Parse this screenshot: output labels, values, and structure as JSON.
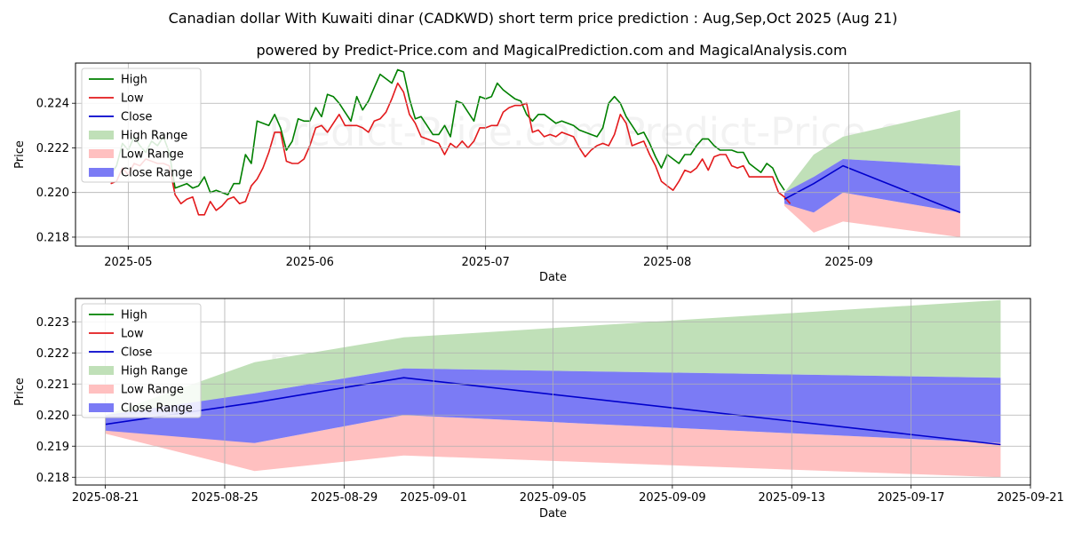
{
  "title": "Canadian dollar With Kuwaiti dinar (CADKWD) short term price prediction : Aug,Sep,Oct 2025 (Aug 21)",
  "subtitle": "powered by Predict-Price.com and MagicalPrediction.com and MagicalAnalysis.com",
  "watermark": "Predict-Price.com",
  "colors": {
    "high": "#008000",
    "low": "#e31a1c",
    "close": "#0000cc",
    "high_range": "#c0e0b8",
    "low_range": "#ffc0c0",
    "close_range": "#7b7bf5"
  },
  "chart_data": [
    {
      "type": "line",
      "xlabel": "Date",
      "ylabel": "Price",
      "x_ticks": [
        "2025-05",
        "2025-06",
        "2025-07",
        "2025-08",
        "2025-09"
      ],
      "x_tick_dates": [
        "2025-05-01",
        "2025-06-01",
        "2025-07-01",
        "2025-08-01",
        "2025-09-01"
      ],
      "xlim": [
        "2025-04-22",
        "2025-10-02"
      ],
      "ylim": [
        0.2176,
        0.2258
      ],
      "y_ticks": [
        0.218,
        0.22,
        0.222,
        0.224
      ],
      "y_tick_labels": [
        "0.218",
        "0.220",
        "0.222",
        "0.224"
      ],
      "grid": true,
      "legend": {
        "placement": "top-left",
        "entries": [
          "High",
          "Low",
          "Close",
          "High Range",
          "Low Range",
          "Close Range"
        ]
      },
      "history_start": "2025-04-28",
      "history_high": [
        0.2208,
        0.2212,
        0.2222,
        0.2219,
        0.2225,
        0.2221,
        0.2218,
        0.2223,
        0.2221,
        0.2225,
        0.2218,
        0.2202,
        0.2203,
        0.2204,
        0.2202,
        0.2203,
        0.2207,
        0.22,
        0.2201,
        0.22,
        0.2199,
        0.2204,
        0.2204,
        0.2217,
        0.2213,
        0.2232,
        0.2231,
        0.223,
        0.2235,
        0.2229,
        0.2219,
        0.2223,
        0.2233,
        0.2232,
        0.2232,
        0.2238,
        0.2234,
        0.2244,
        0.2243,
        0.224,
        0.2236,
        0.2232,
        0.2243,
        0.2237,
        0.2241,
        0.2247,
        0.2253,
        0.2251,
        0.2249,
        0.2255,
        0.2254,
        0.2242,
        0.2233,
        0.2234,
        0.223,
        0.2226,
        0.2226,
        0.223,
        0.2225,
        0.2241,
        0.224,
        0.2236,
        0.2232,
        0.2243,
        0.2242,
        0.2243,
        0.2249,
        0.2246,
        0.2244,
        0.2242,
        0.2241,
        0.2235,
        0.2232,
        0.2235,
        0.2235,
        0.2233,
        0.2231,
        0.2232,
        0.2231,
        0.223,
        0.2228,
        0.2227,
        0.2226,
        0.2225,
        0.2229,
        0.224,
        0.2243,
        0.224,
        0.2234,
        0.223,
        0.2226,
        0.2227,
        0.2222,
        0.2216,
        0.2211,
        0.2217,
        0.2215,
        0.2213,
        0.2217,
        0.2217,
        0.2221,
        0.2224,
        0.2224,
        0.2221,
        0.2219,
        0.2219,
        0.2219,
        0.2218,
        0.2218,
        0.2213,
        0.2211,
        0.2209,
        0.2213,
        0.2211,
        0.2205,
        0.2201
      ],
      "history_low": [
        0.2204,
        0.2205,
        0.2211,
        0.2208,
        0.2213,
        0.2212,
        0.2215,
        0.2214,
        0.2213,
        0.2213,
        0.2212,
        0.2199,
        0.2195,
        0.2197,
        0.2198,
        0.219,
        0.219,
        0.2196,
        0.2192,
        0.2194,
        0.2197,
        0.2198,
        0.2195,
        0.2196,
        0.2203,
        0.2206,
        0.2211,
        0.2218,
        0.2227,
        0.2227,
        0.2214,
        0.2213,
        0.2213,
        0.2215,
        0.2221,
        0.2229,
        0.223,
        0.2227,
        0.2231,
        0.2235,
        0.223,
        0.223,
        0.223,
        0.2229,
        0.2227,
        0.2232,
        0.2233,
        0.2236,
        0.2242,
        0.2249,
        0.2245,
        0.2235,
        0.2231,
        0.2225,
        0.2224,
        0.2223,
        0.2222,
        0.2217,
        0.2222,
        0.222,
        0.2223,
        0.222,
        0.2223,
        0.2229,
        0.2229,
        0.223,
        0.223,
        0.2236,
        0.2238,
        0.2239,
        0.2239,
        0.224,
        0.2227,
        0.2228,
        0.2225,
        0.2226,
        0.2225,
        0.2227,
        0.2226,
        0.2225,
        0.222,
        0.2216,
        0.2219,
        0.2221,
        0.2222,
        0.2221,
        0.2226,
        0.2235,
        0.2231,
        0.2221,
        0.2222,
        0.2223,
        0.2217,
        0.2212,
        0.2205,
        0.2203,
        0.2201,
        0.2205,
        0.221,
        0.2209,
        0.2211,
        0.2215,
        0.221,
        0.2216,
        0.2217,
        0.2217,
        0.2212,
        0.2211,
        0.2212,
        0.2207,
        0.2207,
        0.2207,
        0.2207,
        0.2207,
        0.22,
        0.2198,
        0.2195
      ],
      "forecast_dates": [
        "2025-08-21",
        "2025-08-26",
        "2025-08-31",
        "2025-09-20"
      ],
      "high_range": {
        "upper": [
          0.22,
          0.2217,
          0.2225,
          0.2237
        ],
        "lower": [
          0.2198,
          0.2207,
          0.2215,
          0.2212
        ]
      },
      "low_range": {
        "upper": [
          0.2197,
          0.2191,
          0.22,
          0.2191
        ],
        "lower": [
          0.2194,
          0.2182,
          0.2187,
          0.218
        ]
      },
      "close_range": {
        "upper": [
          0.22,
          0.2207,
          0.2215,
          0.2212
        ],
        "lower": [
          0.2195,
          0.2191,
          0.22,
          0.2191
        ]
      },
      "close": [
        0.2197,
        0.2204,
        0.2212,
        0.2191
      ]
    },
    {
      "type": "area",
      "xlabel": "Date",
      "ylabel": "Price",
      "x_ticks": [
        "2025-08-21",
        "2025-08-25",
        "2025-08-29",
        "2025-09-01",
        "2025-09-05",
        "2025-09-09",
        "2025-09-13",
        "2025-09-17",
        "2025-09-21"
      ],
      "xlim": [
        "2025-08-20",
        "2025-09-21"
      ],
      "ylim": [
        0.21775,
        0.22375
      ],
      "y_ticks": [
        0.218,
        0.219,
        0.22,
        0.221,
        0.222,
        0.223
      ],
      "y_tick_labels": [
        "0.218",
        "0.219",
        "0.220",
        "0.221",
        "0.222",
        "0.223"
      ],
      "grid": true,
      "legend": {
        "placement": "top-left",
        "entries": [
          "High",
          "Low",
          "Close",
          "High Range",
          "Low Range",
          "Close Range"
        ]
      },
      "forecast_dates": [
        "2025-08-21",
        "2025-08-26",
        "2025-08-31",
        "2025-09-20"
      ],
      "high_range": {
        "upper": [
          0.22,
          0.2217,
          0.2225,
          0.2237
        ],
        "lower": [
          0.2198,
          0.2207,
          0.2215,
          0.2212
        ]
      },
      "low_range": {
        "upper": [
          0.2197,
          0.2191,
          0.22,
          0.2191
        ],
        "lower": [
          0.2194,
          0.2182,
          0.2187,
          0.218
        ]
      },
      "close_range": {
        "upper": [
          0.22,
          0.2207,
          0.2215,
          0.2212
        ],
        "lower": [
          0.2195,
          0.2191,
          0.22,
          0.2191
        ]
      },
      "close": [
        0.2197,
        0.2204,
        0.2212,
        0.21905
      ]
    }
  ]
}
